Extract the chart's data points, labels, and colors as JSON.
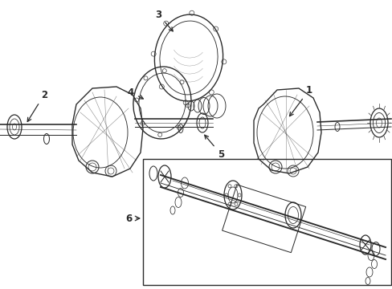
{
  "bg_color": "#ffffff",
  "line_color": "#2a2a2a",
  "figsize": [
    4.89,
    3.6
  ],
  "dpi": 100,
  "lw": 0.9,
  "gray": "#888888",
  "light_gray": "#cccccc",
  "mid_gray": "#555555"
}
